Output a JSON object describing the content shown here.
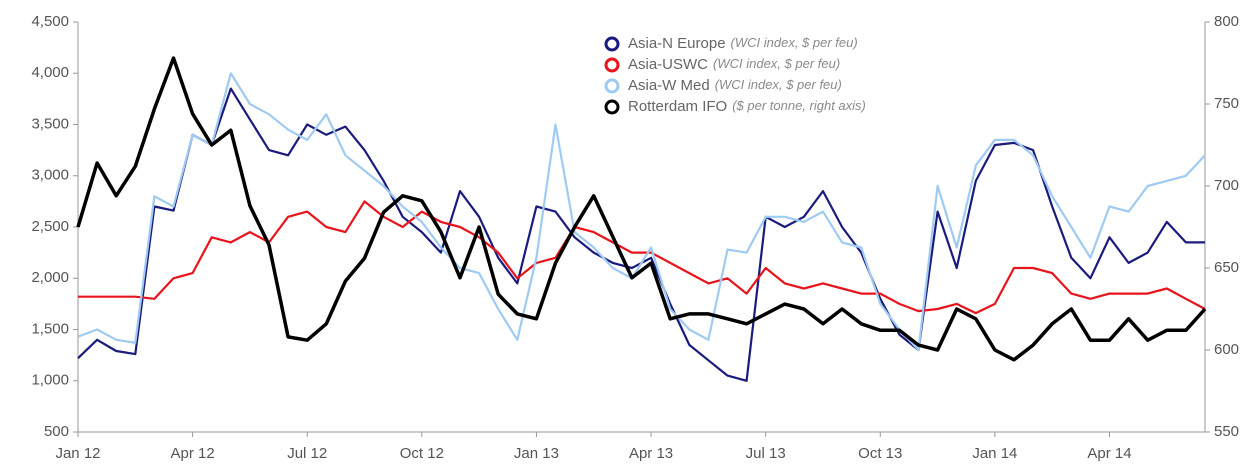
{
  "chart_data": {
    "type": "line",
    "categories": [
      "Jan 12",
      null,
      null,
      null,
      null,
      null,
      "Apr 12",
      null,
      null,
      null,
      null,
      null,
      "Jul 12",
      null,
      null,
      null,
      null,
      null,
      "Oct 12",
      null,
      null,
      null,
      null,
      null,
      "Jan 13",
      null,
      null,
      null,
      null,
      null,
      "Apr 13",
      null,
      null,
      null,
      null,
      null,
      "Jul 13",
      null,
      null,
      null,
      null,
      null,
      "Oct 13",
      null,
      null,
      null,
      null,
      null,
      "Jan 14",
      null,
      null,
      null,
      null,
      null,
      "Apr 14",
      null,
      null,
      null,
      null,
      null
    ],
    "series": [
      {
        "name": "Asia-N Europe",
        "note": "(WCI index, $ per feu)",
        "color": "#1b1b7e",
        "axis": "y",
        "values": [
          1220,
          1400,
          1290,
          1260,
          2700,
          2660,
          3400,
          3300,
          3850,
          3550,
          3250,
          3200,
          3500,
          3400,
          3480,
          3250,
          2950,
          2600,
          2450,
          2250,
          2850,
          2600,
          2200,
          1950,
          2700,
          2650,
          2400,
          2250,
          2150,
          2100,
          2200,
          1750,
          1350,
          1200,
          1050,
          1000,
          2600,
          2500,
          2600,
          2850,
          2500,
          2250,
          1800,
          1450,
          1300,
          2650,
          2100,
          2950,
          3300,
          3320,
          3250,
          2700,
          2200,
          2000,
          2400,
          2150,
          2250,
          2550,
          2350,
          2350
        ]
      },
      {
        "name": "Asia-USWC",
        "note": "(WCI index, $ per feu)",
        "color": "#e8141b",
        "axis": "y",
        "values": [
          1820,
          1820,
          1820,
          1820,
          1800,
          2000,
          2050,
          2400,
          2350,
          2450,
          2350,
          2600,
          2650,
          2500,
          2450,
          2750,
          2600,
          2500,
          2650,
          2550,
          2500,
          2400,
          2250,
          2000,
          2150,
          2200,
          2500,
          2450,
          2350,
          2250,
          2250,
          2150,
          2050,
          1950,
          2000,
          1850,
          2100,
          1950,
          1900,
          1950,
          1900,
          1850,
          1850,
          1750,
          1680,
          1700,
          1750,
          1660,
          1750,
          2100,
          2100,
          2050,
          1850,
          1800,
          1850,
          1850,
          1850,
          1900,
          1800,
          1700
        ]
      },
      {
        "name": "Asia-W Med",
        "note": "(WCI index, $ per feu)",
        "color": "#9fcbf2",
        "axis": "y",
        "values": [
          1430,
          1500,
          1400,
          1370,
          2800,
          2700,
          3400,
          3300,
          4000,
          3700,
          3600,
          3450,
          3350,
          3600,
          3200,
          3050,
          2900,
          2700,
          2550,
          2300,
          2100,
          2050,
          1700,
          1400,
          2200,
          3500,
          2450,
          2300,
          2100,
          2000,
          2300,
          1700,
          1500,
          1400,
          2280,
          2250,
          2600,
          2600,
          2550,
          2650,
          2350,
          2300,
          1750,
          1500,
          1300,
          2900,
          2300,
          3100,
          3350,
          3350,
          3200,
          2800,
          2500,
          2200,
          2700,
          2650,
          2900,
          2950,
          3000,
          3200
        ]
      },
      {
        "name": "Rotterdam IFO",
        "note": "($ per tonne, right axis)",
        "color": "#000000",
        "axis": "y2",
        "values": [
          675,
          714,
          694,
          712,
          747,
          778,
          744,
          725,
          734,
          688,
          664,
          608,
          606,
          616,
          642,
          656,
          684,
          694,
          691,
          672,
          644,
          675,
          634,
          622,
          619,
          653,
          675,
          694,
          669,
          644,
          653,
          619,
          622,
          622,
          619,
          616,
          622,
          628,
          625,
          616,
          625,
          616,
          612,
          612,
          603,
          600,
          625,
          619,
          600,
          594,
          603,
          616,
          625,
          606,
          606,
          619,
          606,
          612,
          612,
          625
        ]
      }
    ],
    "ylim": [
      500,
      4500
    ],
    "yticks": [
      500,
      {
        "value": 1000,
        "label": "1,000"
      },
      {
        "value": 1500,
        "label": "1,500"
      },
      {
        "value": 2000,
        "label": "2,000"
      },
      {
        "value": 2500,
        "label": "2,500"
      },
      {
        "value": 3000,
        "label": "3,000"
      },
      {
        "value": 3500,
        "label": "3,500"
      },
      {
        "value": 4000,
        "label": "4,000"
      },
      {
        "value": 4500,
        "label": "4,500"
      }
    ],
    "y2lim": [
      550,
      800
    ],
    "y2ticks": [
      550,
      600,
      650,
      700,
      750,
      800
    ],
    "legend": "top"
  }
}
